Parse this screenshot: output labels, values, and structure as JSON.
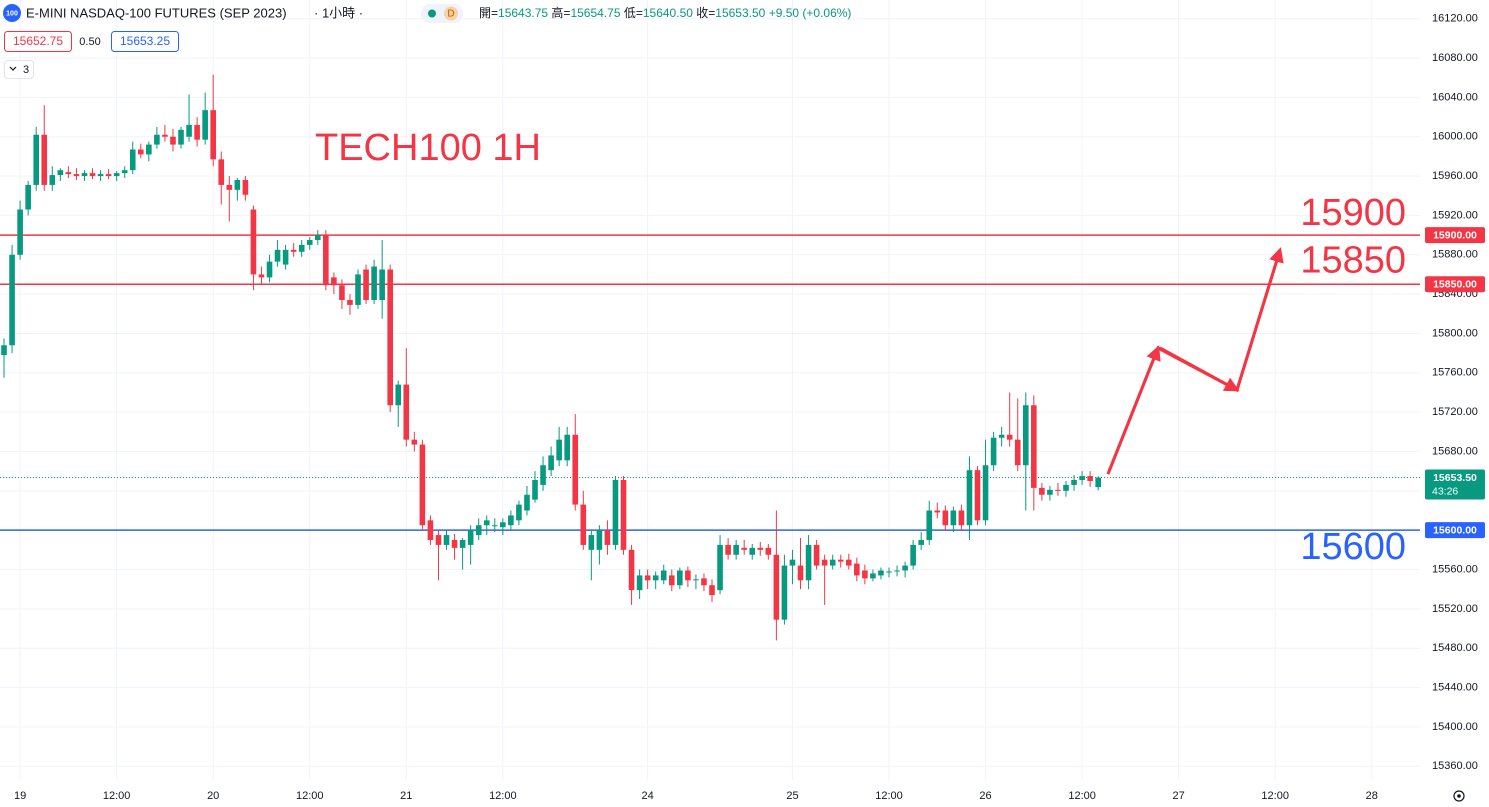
{
  "header": {
    "badge": "100",
    "symbol": "E-MINI NASDAQ-100 FUTURES (SEP 2023)",
    "interval": "· 1小時 ·",
    "session": "D",
    "ohlc": [
      {
        "label": "開=",
        "value": "15643.75"
      },
      {
        "label": "高=",
        "value": "15654.75"
      },
      {
        "label": "低=",
        "value": "15640.50"
      },
      {
        "label": "收=",
        "value": "15653.50"
      }
    ],
    "change": "+9.50 (+0.06%)",
    "bid": "15652.75",
    "spread": "0.50",
    "ask": "15653.25",
    "indicators": "3"
  },
  "chart_data": {
    "type": "candlestick",
    "title": "TECH100 1H",
    "up_color": "#089981",
    "down_color": "#f23645",
    "grid": true,
    "xlim": [
      -0.5,
      176
    ],
    "ylim": [
      15346,
      16139
    ],
    "xticks": [
      {
        "value": 2,
        "label": "19"
      },
      {
        "value": 14,
        "label": "12:00"
      },
      {
        "value": 26,
        "label": "20"
      },
      {
        "value": 38,
        "label": "12:00"
      },
      {
        "value": 50,
        "label": "21"
      },
      {
        "value": 62,
        "label": "12:00"
      },
      {
        "value": 80,
        "label": "24"
      },
      {
        "value": 98,
        "label": "25"
      },
      {
        "value": 110,
        "label": "12:00"
      },
      {
        "value": 122,
        "label": "26"
      },
      {
        "value": 134,
        "label": "12:00"
      },
      {
        "value": 146,
        "label": "27"
      },
      {
        "value": 158,
        "label": "12:00"
      },
      {
        "value": 170,
        "label": "28"
      }
    ],
    "yticks": [
      {
        "value": 15360,
        "label": "15360.00"
      },
      {
        "value": 15400,
        "label": "15400.00"
      },
      {
        "value": 15440,
        "label": "15440.00"
      },
      {
        "value": 15480,
        "label": "15480.00"
      },
      {
        "value": 15520,
        "label": "15520.00"
      },
      {
        "value": 15560,
        "label": "15560.00"
      },
      {
        "value": 15600,
        "label": "15600.00"
      },
      {
        "value": 15640,
        "label": "15640.00"
      },
      {
        "value": 15680,
        "label": "15680.00"
      },
      {
        "value": 15720,
        "label": "15720.00"
      },
      {
        "value": 15760,
        "label": "15760.00"
      },
      {
        "value": 15800,
        "label": "15800.00"
      },
      {
        "value": 15840,
        "label": "15840.00"
      },
      {
        "value": 15880,
        "label": "15880.00"
      },
      {
        "value": 15920,
        "label": "15920.00"
      },
      {
        "value": 15960,
        "label": "15960.00"
      },
      {
        "value": 16000,
        "label": "16000.00"
      },
      {
        "value": 16040,
        "label": "16040.00"
      },
      {
        "value": 16080,
        "label": "16080.00"
      },
      {
        "value": 16120,
        "label": "16120.00"
      }
    ],
    "levels": [
      {
        "value": 15900,
        "label": "15900.00",
        "annotation": "15900",
        "color": "#f23645"
      },
      {
        "value": 15850,
        "label": "15850.00",
        "annotation": "15850",
        "color": "#f23645"
      },
      {
        "value": 15600,
        "label": "15600.00",
        "annotation": "15600",
        "color": "#2962ff"
      }
    ],
    "current_price": {
      "value": 15653.5,
      "label": "15653.50",
      "countdown": "43:26",
      "color": "#089981"
    },
    "ohlc": [
      [
        15778,
        15795,
        15755,
        15788
      ],
      [
        15788,
        15890,
        15780,
        15880
      ],
      [
        15880,
        15935,
        15875,
        15926
      ],
      [
        15926,
        15955,
        15920,
        15951
      ],
      [
        15951,
        16010,
        15945,
        16002
      ],
      [
        16002,
        16032,
        15945,
        15951
      ],
      [
        15951,
        15970,
        15945,
        15961
      ],
      [
        15961,
        15968,
        15955,
        15966
      ],
      [
        15964,
        15970,
        15958,
        15962
      ],
      [
        15962,
        15968,
        15956,
        15960
      ],
      [
        15960,
        15966,
        15955,
        15963
      ],
      [
        15963,
        15968,
        15957,
        15960
      ],
      [
        15960,
        15966,
        15955,
        15962
      ],
      [
        15962,
        15967,
        15957,
        15960
      ],
      [
        15960,
        15965,
        15955,
        15963
      ],
      [
        15963,
        15970,
        15958,
        15966
      ],
      [
        15966,
        15995,
        15962,
        15987
      ],
      [
        15987,
        15993,
        15978,
        15982
      ],
      [
        15982,
        15995,
        15975,
        15992
      ],
      [
        15992,
        16010,
        15988,
        16002
      ],
      [
        16002,
        16012,
        15995,
        16000
      ],
      [
        16000,
        16008,
        15985,
        15992
      ],
      [
        15992,
        16010,
        15988,
        16007
      ],
      [
        16000,
        16043,
        15995,
        16012
      ],
      [
        16012,
        16020,
        15990,
        15997
      ],
      [
        15997,
        16045,
        15992,
        16027
      ],
      [
        16027,
        16063,
        15970,
        15977
      ],
      [
        15977,
        15985,
        15931,
        15951
      ],
      [
        15951,
        15960,
        15914,
        15946
      ],
      [
        15946,
        15958,
        15935,
        15956
      ],
      [
        15956,
        15960,
        15935,
        15941
      ],
      [
        15926,
        15930,
        15844,
        15860
      ],
      [
        15860,
        15868,
        15850,
        15857
      ],
      [
        15857,
        15880,
        15852,
        15873
      ],
      [
        15873,
        15895,
        15868,
        15885
      ],
      [
        15870,
        15890,
        15865,
        15885
      ],
      [
        15885,
        15892,
        15878,
        15883
      ],
      [
        15883,
        15895,
        15878,
        15890
      ],
      [
        15890,
        15898,
        15885,
        15895
      ],
      [
        15895,
        15905,
        15890,
        15900
      ],
      [
        15900,
        15905,
        15844,
        15849
      ],
      [
        15857,
        15862,
        15840,
        15849
      ],
      [
        15849,
        15855,
        15825,
        15834
      ],
      [
        15834,
        15840,
        15819,
        15829
      ],
      [
        15829,
        15865,
        15825,
        15860
      ],
      [
        15865,
        15870,
        15830,
        15834
      ],
      [
        15834,
        15875,
        15830,
        15868
      ],
      [
        15834,
        15895,
        15815,
        15865
      ],
      [
        15865,
        15870,
        15720,
        15727
      ],
      [
        15727,
        15752,
        15705,
        15748
      ],
      [
        15748,
        15785,
        15685,
        15692
      ],
      [
        15692,
        15700,
        15680,
        15687
      ],
      [
        15687,
        15692,
        15600,
        15605
      ],
      [
        15610,
        15615,
        15585,
        15590
      ],
      [
        15595,
        15600,
        15549,
        15585
      ],
      [
        15585,
        15600,
        15580,
        15595
      ],
      [
        15590,
        15596,
        15570,
        15582
      ],
      [
        15582,
        15592,
        15560,
        15590
      ],
      [
        15585,
        15605,
        15565,
        15600
      ],
      [
        15595,
        15612,
        15590,
        15605
      ],
      [
        15605,
        15615,
        15595,
        15610
      ],
      [
        15605,
        15612,
        15598,
        15605
      ],
      [
        15603,
        15612,
        15595,
        15608
      ],
      [
        15605,
        15620,
        15600,
        15615
      ],
      [
        15610,
        15630,
        15605,
        15626
      ],
      [
        15620,
        15645,
        15615,
        15636
      ],
      [
        15631,
        15660,
        15628,
        15651
      ],
      [
        15646,
        15675,
        15640,
        15666
      ],
      [
        15661,
        15685,
        15655,
        15676
      ],
      [
        15671,
        15705,
        15665,
        15692
      ],
      [
        15671,
        15705,
        15665,
        15697
      ],
      [
        15697,
        15718,
        15620,
        15626
      ],
      [
        15626,
        15640,
        15580,
        15585
      ],
      [
        15580,
        15600,
        15549,
        15595
      ],
      [
        15580,
        15605,
        15565,
        15600
      ],
      [
        15600,
        15610,
        15575,
        15585
      ],
      [
        15585,
        15655,
        15580,
        15651
      ],
      [
        15651,
        15655,
        15575,
        15580
      ],
      [
        15580,
        15585,
        15524,
        15539
      ],
      [
        15539,
        15560,
        15530,
        15554
      ],
      [
        15554,
        15560,
        15540,
        15549
      ],
      [
        15549,
        15558,
        15540,
        15554
      ],
      [
        15549,
        15565,
        15545,
        15559
      ],
      [
        15554,
        15560,
        15538,
        15544
      ],
      [
        15544,
        15562,
        15540,
        15559
      ],
      [
        15559,
        15563,
        15542,
        15549
      ],
      [
        15549,
        15555,
        15540,
        15550
      ],
      [
        15551,
        15556,
        15538,
        15544
      ],
      [
        15544,
        15550,
        15527,
        15534
      ],
      [
        15539,
        15595,
        15535,
        15585
      ],
      [
        15585,
        15592,
        15570,
        15575
      ],
      [
        15575,
        15590,
        15570,
        15585
      ],
      [
        15582,
        15590,
        15575,
        15580
      ],
      [
        15575,
        15586,
        15570,
        15582
      ],
      [
        15582,
        15588,
        15574,
        15580
      ],
      [
        15582,
        15586,
        15570,
        15575
      ],
      [
        15575,
        15620,
        15488,
        15509
      ],
      [
        15509,
        15575,
        15504,
        15564
      ],
      [
        15564,
        15580,
        15545,
        15570
      ],
      [
        15564,
        15592,
        15540,
        15549
      ],
      [
        15549,
        15595,
        15540,
        15585
      ],
      [
        15585,
        15590,
        15560,
        15564
      ],
      [
        15570,
        15575,
        15524,
        15564
      ],
      [
        15564,
        15575,
        15560,
        15570
      ],
      [
        15570,
        15575,
        15562,
        15568
      ],
      [
        15570,
        15576,
        15560,
        15564
      ],
      [
        15566,
        15572,
        15548,
        15554
      ],
      [
        15559,
        15565,
        15545,
        15551
      ],
      [
        15551,
        15560,
        15548,
        15556
      ],
      [
        15554,
        15562,
        15550,
        15559
      ],
      [
        15557,
        15562,
        15552,
        15558
      ],
      [
        15558,
        15564,
        15553,
        15559
      ],
      [
        15559,
        15568,
        15552,
        15564
      ],
      [
        15564,
        15590,
        15560,
        15585
      ],
      [
        15585,
        15598,
        15580,
        15590
      ],
      [
        15590,
        15630,
        15585,
        15620
      ],
      [
        15620,
        15628,
        15612,
        15618
      ],
      [
        15620,
        15625,
        15600,
        15605
      ],
      [
        15605,
        15624,
        15598,
        15620
      ],
      [
        15620,
        15626,
        15600,
        15605
      ],
      [
        15605,
        15675,
        15590,
        15661
      ],
      [
        15661,
        15665,
        15605,
        15610
      ],
      [
        15610,
        15692,
        15605,
        15666
      ],
      [
        15666,
        15700,
        15660,
        15694
      ],
      [
        15694,
        15705,
        15685,
        15697
      ],
      [
        15697,
        15740,
        15685,
        15692
      ],
      [
        15692,
        15734,
        15660,
        15666
      ],
      [
        15666,
        15740,
        15620,
        15727
      ],
      [
        15727,
        15737,
        15620,
        15643
      ],
      [
        15643,
        15648,
        15630,
        15636
      ],
      [
        15636,
        15645,
        15630,
        15641
      ],
      [
        15641,
        15648,
        15635,
        15640
      ],
      [
        15640,
        15650,
        15634,
        15646
      ],
      [
        15646,
        15656,
        15640,
        15651
      ],
      [
        15651,
        15660,
        15646,
        15655
      ],
      [
        15655,
        15660,
        15644,
        15650
      ],
      [
        15643.75,
        15654.75,
        15640.5,
        15653.5
      ]
    ]
  }
}
